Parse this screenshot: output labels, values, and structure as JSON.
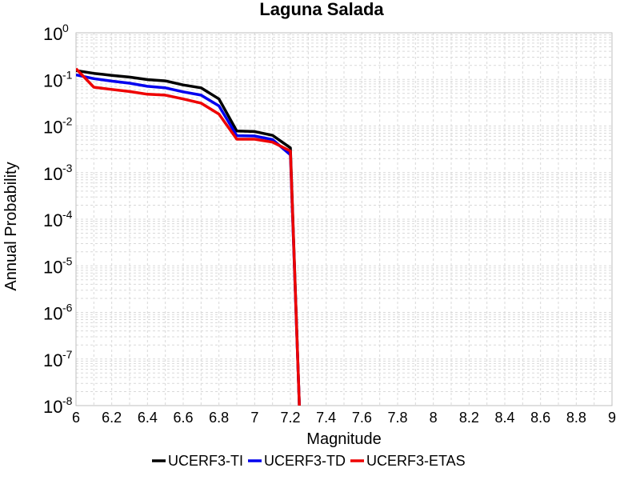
{
  "chart_data": {
    "type": "line",
    "title": "Laguna Salada",
    "xlabel": "Magnitude",
    "ylabel": "Annual Probability",
    "xlim": [
      6,
      9
    ],
    "ylim": [
      1e-08,
      1
    ],
    "yscale": "log",
    "grid": true,
    "legend_position": "bottom",
    "x_ticks": [
      "6",
      "6.2",
      "6.4",
      "6.6",
      "6.8",
      "7",
      "7.2",
      "7.4",
      "7.6",
      "7.8",
      "8",
      "8.2",
      "8.4",
      "8.6",
      "8.8",
      "9"
    ],
    "y_ticks": [
      {
        "base": "10",
        "exp": "0"
      },
      {
        "base": "10",
        "exp": "-1"
      },
      {
        "base": "10",
        "exp": "-2"
      },
      {
        "base": "10",
        "exp": "-3"
      },
      {
        "base": "10",
        "exp": "-4"
      },
      {
        "base": "10",
        "exp": "-5"
      },
      {
        "base": "10",
        "exp": "-6"
      },
      {
        "base": "10",
        "exp": "-7"
      },
      {
        "base": "10",
        "exp": "-8"
      }
    ],
    "series": [
      {
        "name": "UCERF3-TI",
        "color": "#000000",
        "x": [
          6.0,
          6.1,
          6.2,
          6.3,
          6.4,
          6.5,
          6.6,
          6.7,
          6.8,
          6.9,
          7.0,
          7.1,
          7.2,
          7.25,
          7.26
        ],
        "y": [
          0.155,
          0.135,
          0.122,
          0.112,
          0.099,
          0.093,
          0.076,
          0.066,
          0.038,
          0.0078,
          0.0076,
          0.0063,
          0.0034,
          1e-08,
          1e-09
        ]
      },
      {
        "name": "UCERF3-TD",
        "color": "#0000ee",
        "x": [
          6.0,
          6.1,
          6.2,
          6.3,
          6.4,
          6.5,
          6.6,
          6.7,
          6.8,
          6.9,
          7.0,
          7.1,
          7.2,
          7.25,
          7.26
        ],
        "y": [
          0.125,
          0.104,
          0.092,
          0.083,
          0.071,
          0.066,
          0.054,
          0.046,
          0.027,
          0.0062,
          0.0061,
          0.0051,
          0.0024,
          1e-08,
          1e-09
        ]
      },
      {
        "name": "UCERF3-ETAS",
        "color": "#ee0000",
        "x": [
          6.0,
          6.1,
          6.2,
          6.3,
          6.4,
          6.5,
          6.6,
          6.7,
          6.8,
          6.9,
          7.0,
          7.1,
          7.2,
          7.25,
          7.26
        ],
        "y": [
          0.17,
          0.068,
          0.061,
          0.055,
          0.048,
          0.046,
          0.038,
          0.031,
          0.018,
          0.0052,
          0.0052,
          0.0045,
          0.0029,
          1e-08,
          1e-09
        ]
      }
    ]
  }
}
